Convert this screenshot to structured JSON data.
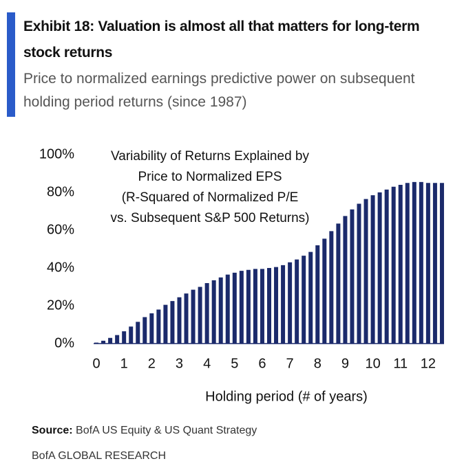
{
  "chart_data": {
    "type": "bar",
    "title": "Exhibit 18: Valuation is almost all that matters for long-term stock returns",
    "subtitle": "Price to normalized earnings predictive power on subsequent holding period returns (since 1987)",
    "annotation": [
      "Variability of Returns Explained by",
      "Price to Normalized EPS",
      "(R-Squared of Normalized P/E",
      "vs. Subsequent S&P 500 Returns)"
    ],
    "x_label": "Holding period (# of years)",
    "x": [
      0,
      0.25,
      0.5,
      0.75,
      1,
      1.25,
      1.5,
      1.75,
      2,
      2.25,
      2.5,
      2.75,
      3,
      3.25,
      3.5,
      3.75,
      4,
      4.25,
      4.5,
      4.75,
      5,
      5.25,
      5.5,
      5.75,
      6,
      6.25,
      6.5,
      6.75,
      7,
      7.25,
      7.5,
      7.75,
      8,
      8.25,
      8.5,
      8.75,
      9,
      9.25,
      9.5,
      9.75,
      10,
      10.25,
      10.5,
      10.75,
      11,
      11.25,
      11.5,
      11.75,
      12,
      12.25,
      12.5
    ],
    "values": [
      0.5,
      1.5,
      3,
      4.5,
      6.5,
      9,
      11.5,
      14,
      16,
      18,
      20.5,
      22.5,
      24.5,
      26.5,
      28.5,
      30,
      32,
      33.5,
      35,
      36.5,
      37.5,
      38.5,
      39,
      39.5,
      39.5,
      40,
      40.5,
      41.5,
      43,
      44.5,
      46.5,
      48.5,
      52,
      55.5,
      59.5,
      63.5,
      67.5,
      71,
      74,
      76.5,
      78.5,
      80,
      81.5,
      83,
      84,
      85,
      85.5,
      85.5,
      85,
      85,
      85
    ],
    "color": "#1b2a6b",
    "xlim": [
      -0.1,
      12.7
    ],
    "xticks": [
      0,
      1,
      2,
      3,
      4,
      5,
      6,
      7,
      8,
      9,
      10,
      11,
      12
    ],
    "ylim": [
      0,
      100
    ],
    "yticks": [
      {
        "value": 0,
        "label": "0%"
      },
      {
        "value": 20,
        "label": "20%"
      },
      {
        "value": 40,
        "label": "40%"
      },
      {
        "value": 60,
        "label": "60%"
      },
      {
        "value": 80,
        "label": "80%"
      },
      {
        "value": 100,
        "label": "100%"
      }
    ],
    "grid": false,
    "source_label": "Source:",
    "source": "BofA US Equity & US Quant Strategy",
    "footer": "BofA GLOBAL RESEARCH"
  }
}
